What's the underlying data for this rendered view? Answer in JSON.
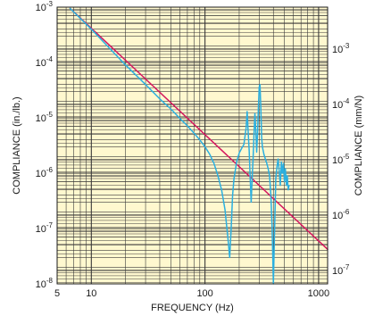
{
  "chart_data": {
    "type": "line",
    "xlabel": "FREQUENCY (Hz)",
    "ylabel": "COMPLIANCE (in./lb.)",
    "y2label": "COMPLIANCE (mm/N)",
    "x_scale": "log",
    "y_scale": "log",
    "y2_scale": "log",
    "xlim": [
      5,
      1200
    ],
    "ylim": [
      1e-08,
      0.001
    ],
    "y2lim": [
      5.71e-08,
      0.00571
    ],
    "grid": true,
    "background_color": "#fff8cf",
    "grid_color": "#3a3a3a",
    "x_ticks": [
      {
        "value": 5,
        "label": "5"
      },
      {
        "value": 10,
        "label": "10"
      },
      {
        "value": 100,
        "label": "100"
      },
      {
        "value": 1000,
        "label": "1000"
      }
    ],
    "y_ticks": [
      {
        "value": 0.001,
        "base": "10",
        "exp": "-3"
      },
      {
        "value": 0.0001,
        "base": "10",
        "exp": "-4"
      },
      {
        "value": 1e-05,
        "base": "10",
        "exp": "-5"
      },
      {
        "value": 1e-06,
        "base": "10",
        "exp": "-6"
      },
      {
        "value": 1e-07,
        "base": "10",
        "exp": "-7"
      },
      {
        "value": 1e-08,
        "base": "10",
        "exp": "-8"
      }
    ],
    "y2_ticks": [
      {
        "value": 0.001,
        "base": "10",
        "exp": "-3"
      },
      {
        "value": 0.0001,
        "base": "10",
        "exp": "-4"
      },
      {
        "value": 1e-05,
        "base": "10",
        "exp": "-5"
      },
      {
        "value": 1e-06,
        "base": "10",
        "exp": "-6"
      },
      {
        "value": 1e-07,
        "base": "10",
        "exp": "-7"
      }
    ],
    "series": [
      {
        "color": "#d4175e",
        "x": [
          6.5,
          1200
        ],
        "y": [
          0.00095,
          4.2e-08
        ]
      },
      {
        "color": "#2bb0e0",
        "x": [
          6.5,
          10,
          20,
          30,
          40,
          50,
          60,
          70,
          80,
          90,
          100,
          110,
          120,
          130,
          140,
          150,
          160,
          165,
          170,
          175,
          180,
          190,
          200,
          210,
          220,
          230,
          235,
          240,
          245,
          250,
          255,
          260,
          265,
          270,
          275,
          280,
          285,
          290,
          295,
          300,
          305,
          310,
          315,
          320,
          330,
          340,
          350,
          360,
          370,
          380,
          390,
          400,
          410,
          420,
          430,
          440,
          450,
          460,
          470,
          480,
          490,
          500,
          510,
          520,
          530,
          540,
          550
        ],
        "y": [
          0.00095,
          0.0004,
          9e-05,
          4e-05,
          2.2e-05,
          1.45e-05,
          9.8e-06,
          7.2e-06,
          5.3e-06,
          4e-06,
          3e-06,
          2.2e-06,
          1.5e-06,
          9e-07,
          5e-07,
          2.2e-07,
          6e-08,
          3e-08,
          1e-07,
          4e-07,
          8e-07,
          1.6e-06,
          2.3e-06,
          2.8e-06,
          3.3e-06,
          6.5e-06,
          1.3e-05,
          5.5e-06,
          2.5e-06,
          8e-07,
          3e-07,
          8e-07,
          1.8e-06,
          5e-06,
          1.2e-05,
          6e-06,
          2.4e-06,
          5e-06,
          1.5e-05,
          3.6e-05,
          4e-05,
          1.5e-05,
          4.5e-06,
          3e-06,
          2.2e-06,
          1.8e-06,
          1.5e-06,
          1.2e-06,
          9e-07,
          4e-07,
          1e-07,
          1e-08,
          1e-07,
          8e-07,
          1.3e-06,
          1.8e-06,
          1.1e-06,
          6e-07,
          1.6e-06,
          1e-06,
          1.5e-06,
          7e-07,
          1.2e-06,
          6e-07,
          9e-07,
          5e-07,
          6e-07
        ]
      }
    ]
  }
}
